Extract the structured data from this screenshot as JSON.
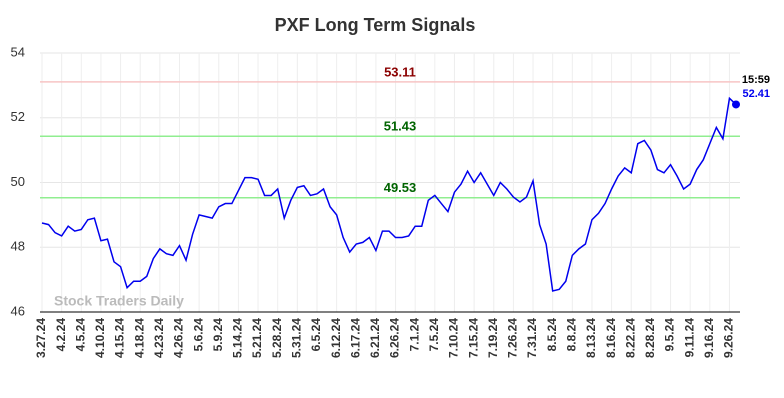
{
  "chart_data": {
    "type": "line",
    "title": "PXF Long Term Signals",
    "categories": [
      "3.27.24",
      null,
      null,
      "4.2.24",
      null,
      null,
      "4.5.24",
      null,
      null,
      "4.10.24",
      null,
      null,
      "4.15.24",
      null,
      null,
      "4.18.24",
      null,
      null,
      "4.23.24",
      null,
      null,
      "4.26.24",
      null,
      null,
      "5.6.24",
      null,
      null,
      "5.9.24",
      null,
      null,
      "5.14.24",
      null,
      null,
      "5.21.24",
      null,
      null,
      "5.28.24",
      null,
      null,
      "5.31.24",
      null,
      null,
      "6.5.24",
      null,
      null,
      "6.12.24",
      null,
      null,
      "6.17.24",
      null,
      null,
      "6.21.24",
      null,
      null,
      "6.26.24",
      null,
      null,
      "7.1.24",
      null,
      null,
      "7.5.24",
      null,
      null,
      "7.10.24",
      null,
      null,
      "7.15.24",
      null,
      null,
      "7.19.24",
      null,
      null,
      "7.26.24",
      null,
      null,
      "7.31.24",
      null,
      null,
      "8.5.24",
      null,
      null,
      "8.8.24",
      null,
      null,
      "8.13.24",
      null,
      null,
      "8.16.24",
      null,
      null,
      "8.22.24",
      null,
      null,
      "8.28.24",
      null,
      null,
      "9.5.24",
      null,
      null,
      "9.11.24",
      null,
      null,
      "9.16.24",
      null,
      null,
      "9.26.24",
      null
    ],
    "values": [
      48.75,
      48.7,
      48.45,
      48.35,
      48.65,
      48.5,
      48.55,
      48.85,
      48.9,
      48.2,
      48.25,
      47.55,
      47.4,
      46.75,
      46.95,
      46.95,
      47.1,
      47.65,
      47.95,
      47.8,
      47.75,
      48.05,
      47.6,
      48.4,
      49.0,
      48.95,
      48.9,
      49.25,
      49.35,
      49.35,
      49.75,
      50.15,
      50.15,
      50.1,
      49.6,
      49.6,
      49.8,
      48.9,
      49.45,
      49.85,
      49.9,
      49.6,
      49.65,
      49.8,
      49.25,
      49.0,
      48.3,
      47.85,
      48.1,
      48.15,
      48.3,
      47.9,
      48.5,
      48.5,
      48.3,
      48.3,
      48.35,
      48.65,
      48.65,
      49.45,
      49.6,
      49.35,
      49.1,
      49.7,
      49.95,
      50.35,
      50.0,
      50.3,
      49.95,
      49.6,
      50.0,
      49.8,
      49.55,
      49.4,
      49.55,
      50.05,
      48.7,
      48.1,
      46.65,
      46.7,
      46.95,
      47.75,
      47.95,
      48.1,
      48.85,
      49.05,
      49.35,
      49.8,
      50.2,
      50.45,
      50.3,
      51.2,
      51.3,
      51.0,
      50.4,
      50.3,
      50.55,
      50.2,
      49.8,
      49.95,
      50.4,
      50.7,
      51.2,
      51.7,
      51.35,
      52.6,
      52.41
    ],
    "color": "#0000ee",
    "ylim": [
      46,
      54
    ],
    "yticks": [
      46,
      48,
      50,
      52,
      54
    ],
    "grid": true,
    "hlines": [
      {
        "value": 53.11,
        "color": "#f7c4c4",
        "label_color": "#8b0000"
      },
      {
        "value": 51.43,
        "color": "#90ee90",
        "label_color": "#006400"
      },
      {
        "value": 49.53,
        "color": "#90ee90",
        "label_color": "#006400"
      }
    ],
    "last_time": "15:59",
    "watermark": "Stock Traders Daily"
  }
}
